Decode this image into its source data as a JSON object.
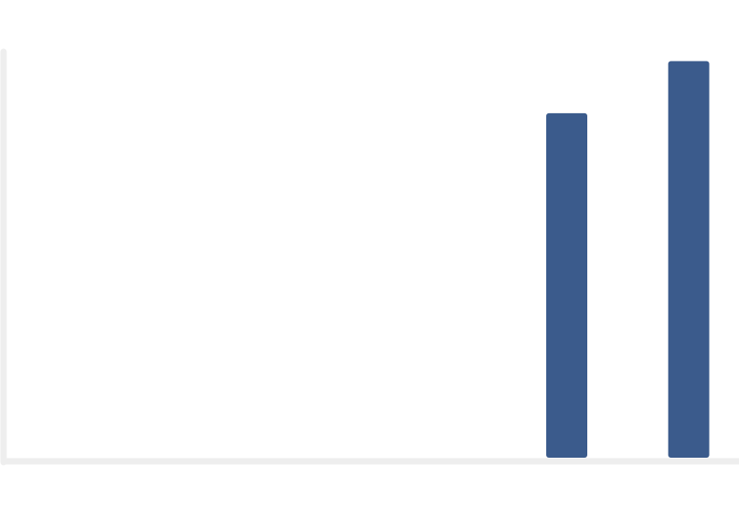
{
  "chart_data": {
    "type": "bar",
    "categories": [
      "",
      "",
      "",
      "",
      "",
      ""
    ],
    "values": [
      0,
      0,
      0,
      0,
      86,
      99
    ],
    "title": "",
    "xlabel": "",
    "ylabel": "",
    "ylim": [
      0,
      100
    ],
    "grid": false,
    "legend": "none",
    "colors": {
      "bar": "#3b5b8c",
      "axis": "#eeeeee",
      "background": "#ffffff"
    }
  }
}
